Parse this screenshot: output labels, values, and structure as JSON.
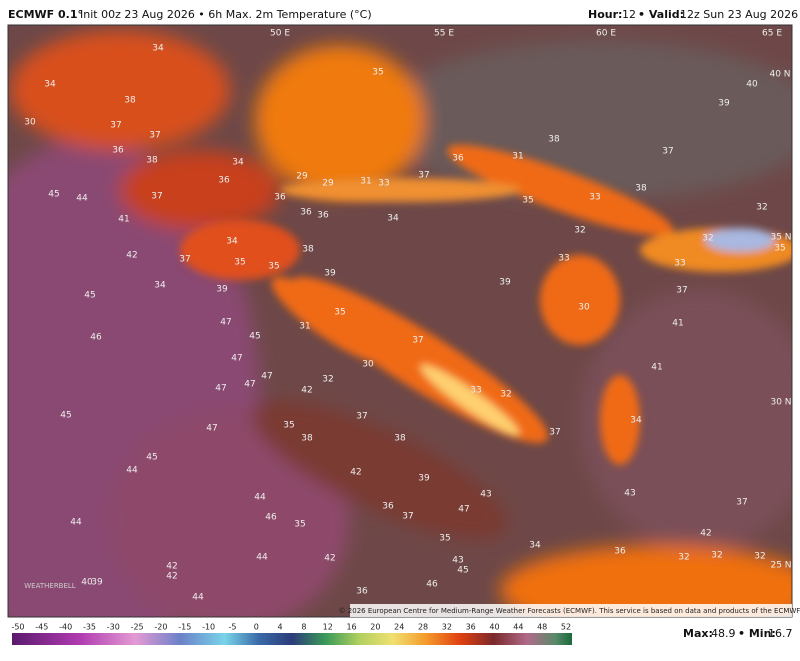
{
  "header": {
    "model": "ECMWF 0.1°",
    "title": "Init 00z 23 Aug 2026 • 6h Max. 2m Temperature (°C)",
    "hour_label": "Hour:",
    "hour": "12",
    "valid_label": "• Valid:",
    "valid": "12z Sun 23 Aug 2026"
  },
  "grid_labels": [
    "50 E",
    "55 E",
    "60 E",
    "65 E",
    "40 N",
    "35 N",
    "30 N",
    "25 N"
  ],
  "map_labels": [
    34,
    34,
    38,
    37,
    37,
    36,
    38,
    34,
    36,
    29,
    29,
    31,
    33,
    37,
    36,
    31,
    38,
    37,
    38,
    35,
    33,
    32,
    32,
    35,
    33,
    37,
    41,
    32,
    39,
    40,
    35,
    45,
    44,
    41,
    37,
    36,
    36,
    36,
    34,
    38,
    39,
    39,
    33,
    30,
    34,
    35,
    35,
    37,
    34,
    39,
    42,
    45,
    46,
    47,
    45,
    47,
    47,
    47,
    47,
    31,
    35,
    37,
    30,
    32,
    33,
    32,
    37,
    34,
    41,
    42,
    37,
    35,
    38,
    38,
    47,
    45,
    45,
    44,
    42,
    39,
    43,
    47,
    36,
    37,
    43,
    37,
    42,
    35,
    44,
    46,
    35,
    34,
    36,
    32,
    32,
    32,
    42,
    44,
    44,
    42,
    42,
    43,
    45,
    46,
    36,
    44,
    40,
    39,
    30
  ],
  "credit": "© 2026 European Centre for Medium-Range Weather Forecasts (ECMWF). This service is based on data and products of the ECMWF.",
  "logo": "WEATHERBELL",
  "colorbar_ticks": [
    -50,
    -45,
    -40,
    -35,
    -30,
    -25,
    -20,
    -15,
    -10,
    -5,
    0,
    4,
    8,
    12,
    16,
    20,
    24,
    28,
    32,
    36,
    40,
    44,
    48,
    52
  ],
  "stats": {
    "max_label": "Max:",
    "max": 48.9,
    "min_label": "• Min:",
    "min": 16.7
  }
}
